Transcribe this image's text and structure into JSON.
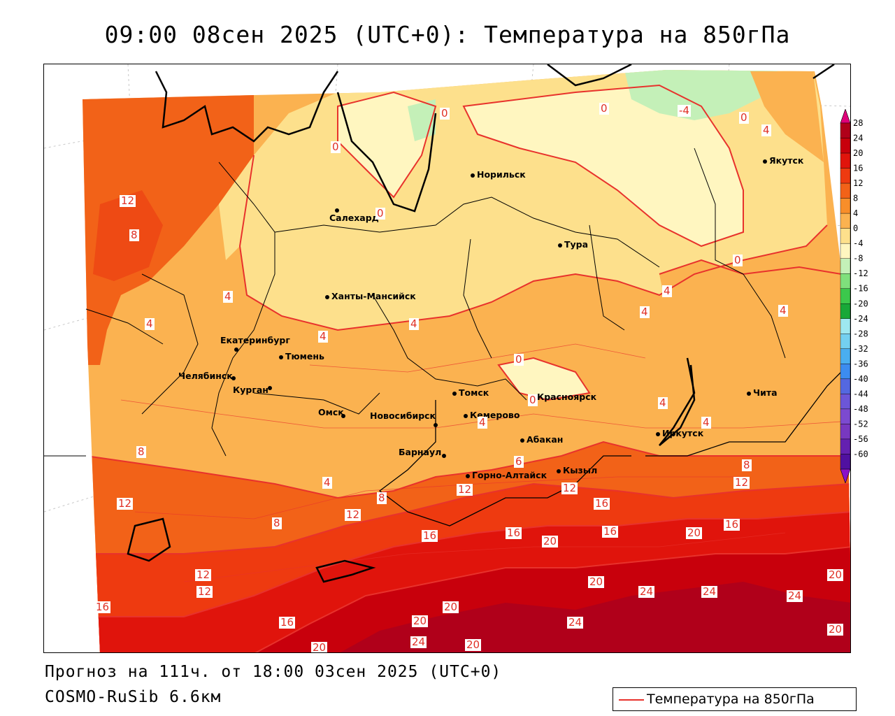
{
  "title": "09:00 08сен 2025 (UTC+0): Температура на 850гПа",
  "forecast_text": "Прогноз на 111ч. от 18:00 03сен 2025 (UTC+0)",
  "model_text": "COSMO-RuSib 6.6км",
  "legend": {
    "label": "Температура на 850гПа",
    "line_color": "#e8322c"
  },
  "colorbar": {
    "labels": [
      "28",
      "24",
      "20",
      "16",
      "12",
      "8",
      "4",
      "0",
      "-4",
      "-8",
      "-12",
      "-16",
      "-20",
      "-24",
      "-28",
      "-32",
      "-36",
      "-40",
      "-44",
      "-48",
      "-52",
      "-56",
      "-60"
    ],
    "colors": [
      "#b0001a",
      "#c8000c",
      "#e0140c",
      "#ee3a10",
      "#f26218",
      "#f88e2a",
      "#fbb250",
      "#fde08c",
      "#fff6c0",
      "#c4f0b8",
      "#7fe07c",
      "#3cc84c",
      "#18a838",
      "#9ee8f0",
      "#74d0f0",
      "#4aaef0",
      "#3c8cf0",
      "#5468e0",
      "#6c56d8",
      "#7c4ad0",
      "#7838c0",
      "#6420b0",
      "#5010a0"
    ],
    "top_arrow_color": "#e0007a",
    "bottom_arrow_color": "#8a10c8"
  },
  "cities": [
    {
      "name": "Норильск"
    },
    {
      "name": "Якутск"
    },
    {
      "name": "Салехард"
    },
    {
      "name": "Тура"
    },
    {
      "name": "Ханты-Мансийск"
    },
    {
      "name": "Екатеринбург"
    },
    {
      "name": "Тюмень"
    },
    {
      "name": "Челябинск"
    },
    {
      "name": "Курган"
    },
    {
      "name": "Омск"
    },
    {
      "name": "Новосибирск"
    },
    {
      "name": "Томск"
    },
    {
      "name": "Кемерово"
    },
    {
      "name": "Красноярск"
    },
    {
      "name": "Абакан"
    },
    {
      "name": "Барнаул"
    },
    {
      "name": "Горно-Алтайск"
    },
    {
      "name": "Кызыл"
    },
    {
      "name": "Иркутск"
    },
    {
      "name": "Чита"
    }
  ],
  "contour_labels": [
    "0",
    "0",
    "0",
    "-4",
    "0",
    "4",
    "0",
    "0",
    "12",
    "8",
    "4",
    "4",
    "4",
    "4",
    "4",
    "0",
    "4",
    "4",
    "4",
    "0",
    "4",
    "4",
    "8",
    "8",
    "12",
    "4",
    "8",
    "12",
    "12",
    "6",
    "12",
    "16",
    "8",
    "12",
    "16",
    "16",
    "20",
    "16",
    "20",
    "16",
    "12",
    "12",
    "16",
    "20",
    "20",
    "24",
    "24",
    "24",
    "20",
    "16",
    "20",
    "24",
    "20",
    "20",
    "24",
    "20"
  ]
}
